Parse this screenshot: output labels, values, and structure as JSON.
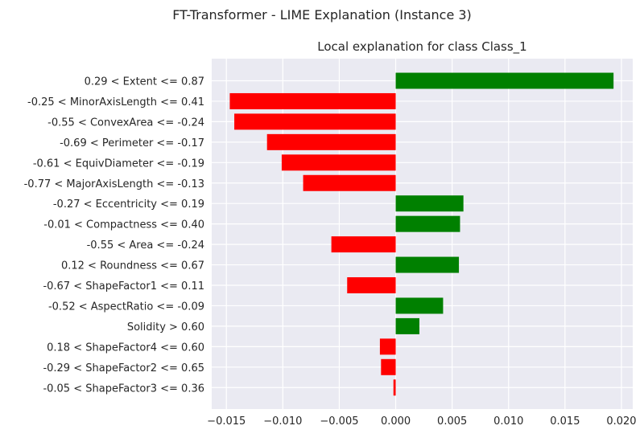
{
  "figure": {
    "suptitle": "FT-Transformer - LIME Explanation (Instance 3)"
  },
  "chart_data": {
    "type": "bar",
    "orientation": "horizontal",
    "title": "Local explanation for class Class_1",
    "xlabel": "",
    "ylabel": "",
    "xlim": [
      -0.0163,
      0.021
    ],
    "xticks": [
      -0.015,
      -0.01,
      -0.005,
      0.0,
      0.005,
      0.01,
      0.015,
      0.02
    ],
    "xtick_labels": [
      "−0.015",
      "−0.010",
      "−0.005",
      "0.000",
      "0.005",
      "0.010",
      "0.015",
      "0.020"
    ],
    "grid": true,
    "colors": {
      "positive": "#008000",
      "negative": "#ff0000",
      "background": "#eaeaf2",
      "grid": "#ffffff"
    },
    "categories": [
      "0.29 < Extent <= 0.87",
      "-0.25 < MinorAxisLength <= 0.41",
      "-0.55 < ConvexArea <= -0.24",
      "-0.69 < Perimeter <= -0.17",
      "-0.61 < EquivDiameter <= -0.19",
      "-0.77 < MajorAxisLength <= -0.13",
      "-0.27 < Eccentricity <= 0.19",
      "-0.01 < Compactness <= 0.40",
      "-0.55 < Area <= -0.24",
      "0.12 < Roundness <= 0.67",
      "-0.67 < ShapeFactor1 <= 0.11",
      "-0.52 < AspectRatio <= -0.09",
      "Solidity > 0.60",
      "0.18 < ShapeFactor4 <= 0.60",
      "-0.29 < ShapeFactor2 <= 0.65",
      "-0.05 < ShapeFactor3 <= 0.36"
    ],
    "values": [
      0.0193,
      -0.0147,
      -0.0143,
      -0.0114,
      -0.0101,
      -0.0082,
      0.006,
      0.0057,
      -0.0057,
      0.0056,
      -0.0043,
      0.0042,
      0.0021,
      -0.0014,
      -0.0013,
      -0.0002
    ]
  }
}
